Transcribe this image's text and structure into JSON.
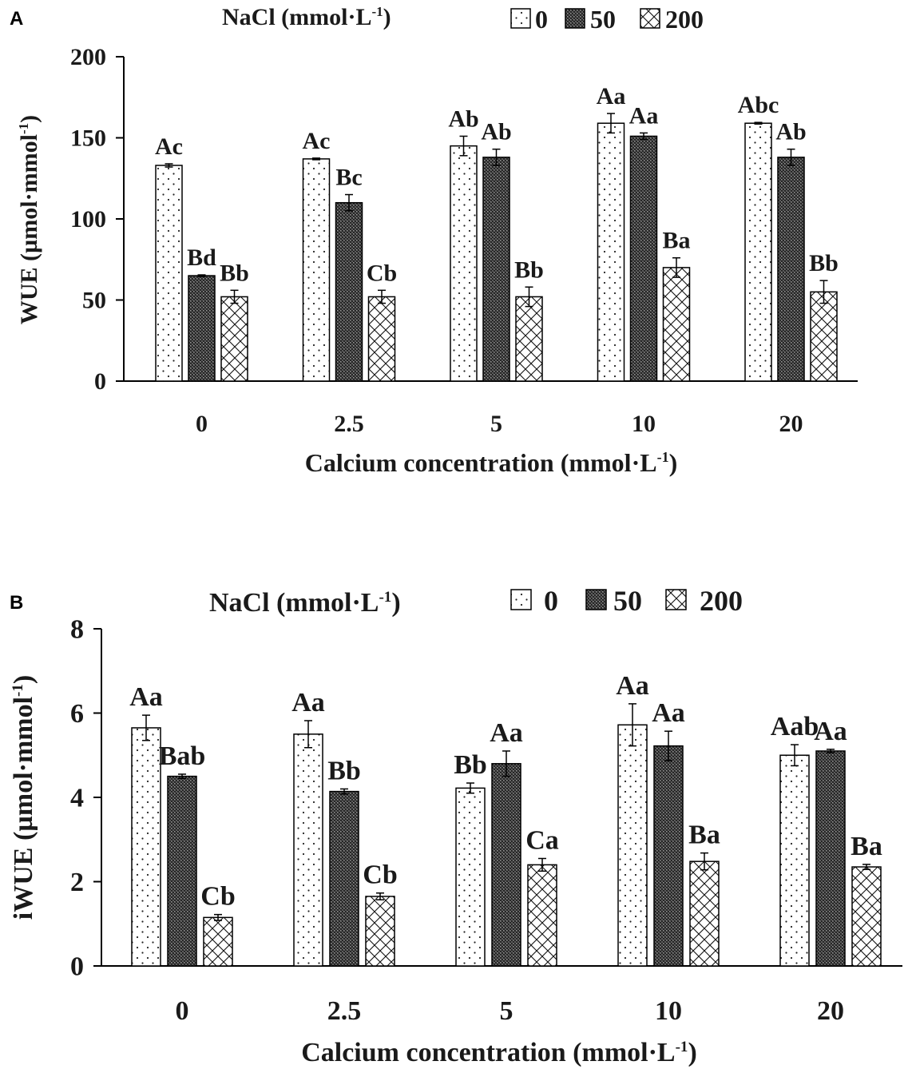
{
  "chart_data": [
    {
      "panel": "A",
      "type": "bar",
      "legend_title": "NaCl (mmol·L",
      "legend_title_sup": "-1",
      "legend_title_close": ")",
      "series": [
        {
          "name": "0",
          "pattern": "dots",
          "values": [
            133,
            137,
            145,
            159,
            159
          ],
          "errors": [
            1,
            0.5,
            6,
            6,
            0.5
          ],
          "letters": [
            "Ac",
            "Ac",
            "Ab",
            "Aa",
            "Abc"
          ]
        },
        {
          "name": "50",
          "pattern": "dense",
          "values": [
            65,
            110,
            138,
            151,
            138
          ],
          "errors": [
            0.5,
            5,
            5,
            2,
            5
          ],
          "letters": [
            "Bd",
            "Bc",
            "Ab",
            "Aa",
            "Ab"
          ]
        },
        {
          "name": "200",
          "pattern": "crosshatch",
          "values": [
            52,
            52,
            52,
            70,
            55
          ],
          "errors": [
            4,
            4,
            6,
            6,
            7
          ],
          "letters": [
            "Bb",
            "Cb",
            "Bb",
            "Ba",
            "Bb"
          ]
        }
      ],
      "categories": [
        "0",
        "2.5",
        "5",
        "10",
        "20"
      ],
      "yticks": [
        "0",
        "50",
        "100",
        "150",
        "200"
      ],
      "ylim": [
        0,
        200
      ],
      "ylabel": "WUE (µmol·mmol",
      "ylabel_sup": "-1",
      "ylabel_close": ")",
      "xlabel": "Calcium concentration (mmol·L",
      "xlabel_sup": "-1",
      "xlabel_close": ")"
    },
    {
      "panel": "B",
      "type": "bar",
      "legend_title": "NaCl (mmol·L",
      "legend_title_sup": "-1",
      "legend_title_close": ")",
      "series": [
        {
          "name": "0",
          "pattern": "dots",
          "values": [
            5.65,
            5.5,
            4.22,
            5.72,
            5.0
          ],
          "errors": [
            0.3,
            0.32,
            0.12,
            0.5,
            0.25
          ],
          "letters": [
            "Aa",
            "Aa",
            "Bb",
            "Aa",
            "Aab"
          ]
        },
        {
          "name": "50",
          "pattern": "dense",
          "values": [
            4.5,
            4.14,
            4.8,
            5.22,
            5.1
          ],
          "errors": [
            0.05,
            0.06,
            0.3,
            0.35,
            0.04
          ],
          "letters": [
            "Bab",
            "Bb",
            "Aa",
            "Aa",
            "Aa"
          ]
        },
        {
          "name": "200",
          "pattern": "crosshatch",
          "values": [
            1.15,
            1.65,
            2.4,
            2.48,
            2.35
          ],
          "errors": [
            0.07,
            0.08,
            0.15,
            0.2,
            0.06
          ],
          "letters": [
            "Cb",
            "Cb",
            "Ca",
            "Ba",
            "Ba"
          ]
        }
      ],
      "categories": [
        "0",
        "2.5",
        "5",
        "10",
        "20"
      ],
      "yticks": [
        "0",
        "2",
        "4",
        "6",
        "8"
      ],
      "ylim": [
        0,
        8
      ],
      "ylabel": "iWUE (µmol·mmol",
      "ylabel_sup": "-1",
      "ylabel_close": ")",
      "xlabel": "Calcium concentration (mmol·L",
      "xlabel_sup": "-1",
      "xlabel_close": ")"
    }
  ]
}
